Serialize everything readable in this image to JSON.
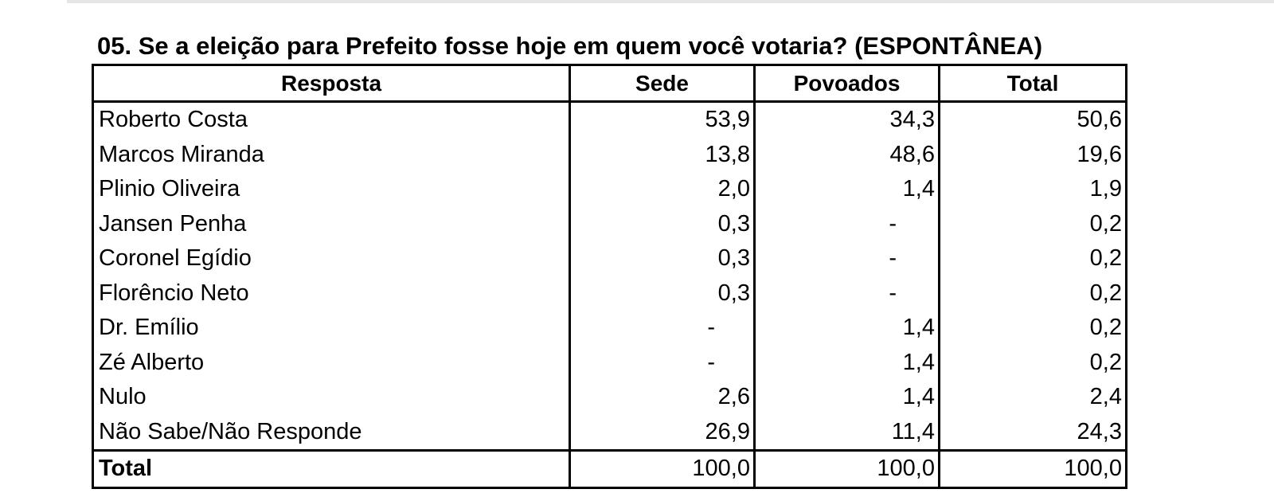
{
  "title": "05. Se a eleição para Prefeito fosse hoje em quem você votaria? (ESPONTÂNEA)",
  "columns": [
    "Resposta",
    "Sede",
    "Povoados",
    "Total"
  ],
  "rows": [
    {
      "resposta": "Roberto Costa",
      "sede": "53,9",
      "povoados": "34,3",
      "total": "50,6"
    },
    {
      "resposta": "Marcos Miranda",
      "sede": "13,8",
      "povoados": "48,6",
      "total": "19,6"
    },
    {
      "resposta": "Plinio Oliveira",
      "sede": "2,0",
      "povoados": "1,4",
      "total": "1,9"
    },
    {
      "resposta": "Jansen Penha",
      "sede": "0,3",
      "povoados": "-",
      "total": "0,2"
    },
    {
      "resposta": "Coronel Egídio",
      "sede": "0,3",
      "povoados": "-",
      "total": "0,2"
    },
    {
      "resposta": "Florêncio Neto",
      "sede": "0,3",
      "povoados": "-",
      "total": "0,2"
    },
    {
      "resposta": "Dr. Emílio",
      "sede": "-",
      "povoados": "1,4",
      "total": "0,2"
    },
    {
      "resposta": "Zé Alberto",
      "sede": "-",
      "povoados": "1,4",
      "total": "0,2"
    },
    {
      "resposta": "Nulo",
      "sede": "2,6",
      "povoados": "1,4",
      "total": "2,4"
    },
    {
      "resposta": "Não Sabe/Não Responde",
      "sede": "26,9",
      "povoados": "11,4",
      "total": "24,3"
    }
  ],
  "total_row": {
    "resposta": "Total",
    "sede": "100,0",
    "povoados": "100,0",
    "total": "100,0"
  }
}
